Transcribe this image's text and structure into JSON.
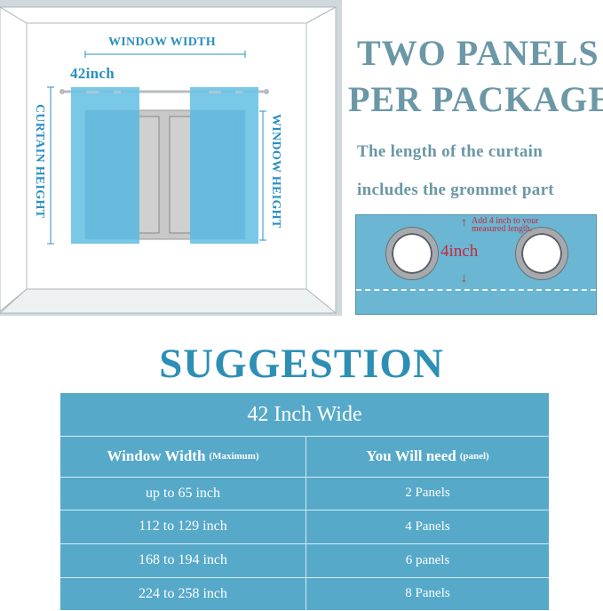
{
  "diagram": {
    "window_width_label": "WINDOW WIDTH",
    "curtain_width_label": "42inch",
    "curtain_height_label": "CURTAIN HEIGHT",
    "window_height_label": "WINDOW HEIGHT",
    "curtain_color": "#6ec3e6"
  },
  "info": {
    "title_line1": "TWO PANELS",
    "title_line2": "PER PACKAGE",
    "note_line1": "The length of the curtain",
    "note_line2": "includes the grommet  part"
  },
  "grommet_detail": {
    "measure_label": "4inch",
    "note_line1": "Add 4 inch to your",
    "note_line2": "measured length."
  },
  "suggestion": {
    "heading": "SUGGESTION",
    "table": {
      "title": "42 Inch Wide",
      "columns": [
        {
          "label": "Window Width",
          "qualifier": "(Maximum)"
        },
        {
          "label": "You Will need",
          "qualifier": "(panel)"
        }
      ],
      "rows": [
        [
          "up to 65 inch",
          "2 Panels"
        ],
        [
          "112 to 129 inch",
          "4 Panels"
        ],
        [
          "168 to 194 inch",
          "6 panels"
        ],
        [
          "224 to 258 inch",
          "8 Panels"
        ]
      ],
      "color": "#56a9c9"
    }
  }
}
